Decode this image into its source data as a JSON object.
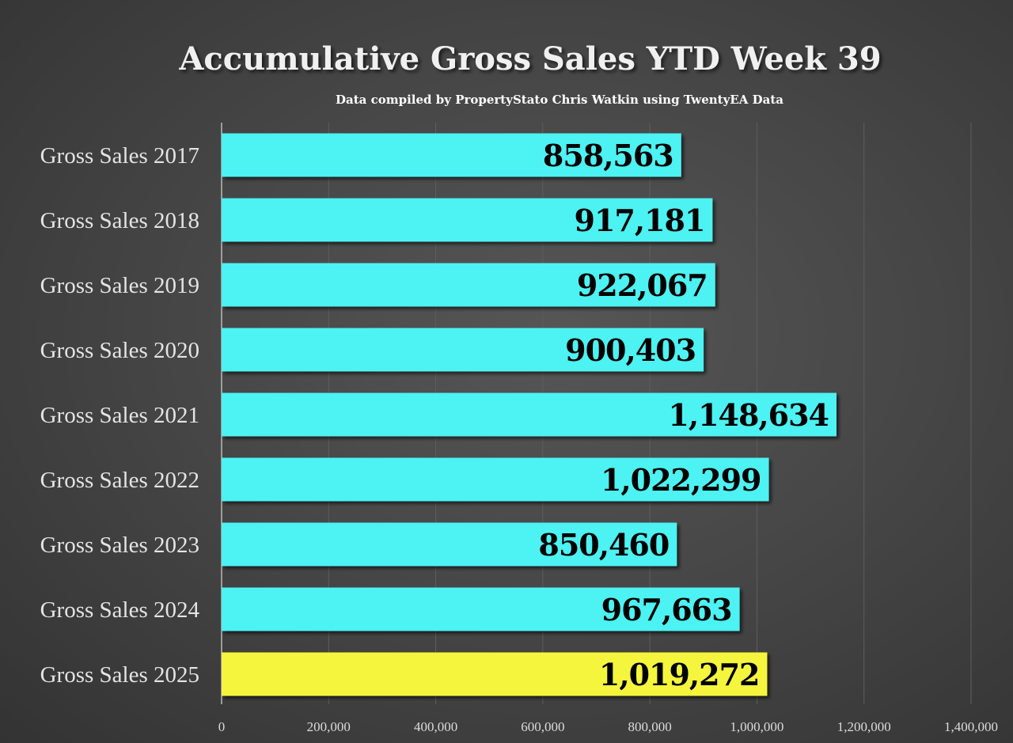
{
  "chart_data": {
    "type": "bar",
    "orientation": "horizontal",
    "title": "Accumulative Gross Sales YTD Week 39",
    "subtitle": "Data compiled by PropertyStato Chris Watkin using TwentyEA Data",
    "categories": [
      "Gross Sales 2017",
      "Gross Sales 2018",
      "Gross Sales 2019",
      "Gross Sales 2020",
      "Gross Sales 2021",
      "Gross Sales 2022",
      "Gross Sales 2023",
      "Gross Sales 2024",
      "Gross Sales 2025"
    ],
    "values": [
      858563,
      917181,
      922067,
      900403,
      1148634,
      1022299,
      850460,
      967663,
      1019272
    ],
    "data_labels": [
      "858,563",
      "917,181",
      "922,067",
      "900,403",
      "1,148,634",
      "1,022,299",
      "850,460",
      "967,663",
      "1,019,272"
    ],
    "bar_colors": [
      "#4ef2f2",
      "#4ef2f2",
      "#4ef2f2",
      "#4ef2f2",
      "#4ef2f2",
      "#4ef2f2",
      "#4ef2f2",
      "#4ef2f2",
      "#f5f53d"
    ],
    "xlim": [
      0,
      1400000
    ],
    "xticks": [
      0,
      200000,
      400000,
      600000,
      800000,
      1000000,
      1200000,
      1400000
    ],
    "xtick_labels": [
      "0",
      "200,000",
      "400,000",
      "600,000",
      "800,000",
      "1,000,000",
      "1,200,000",
      "1,400,000"
    ],
    "xlabel": "",
    "ylabel": "",
    "grid": true,
    "legend": "none"
  }
}
